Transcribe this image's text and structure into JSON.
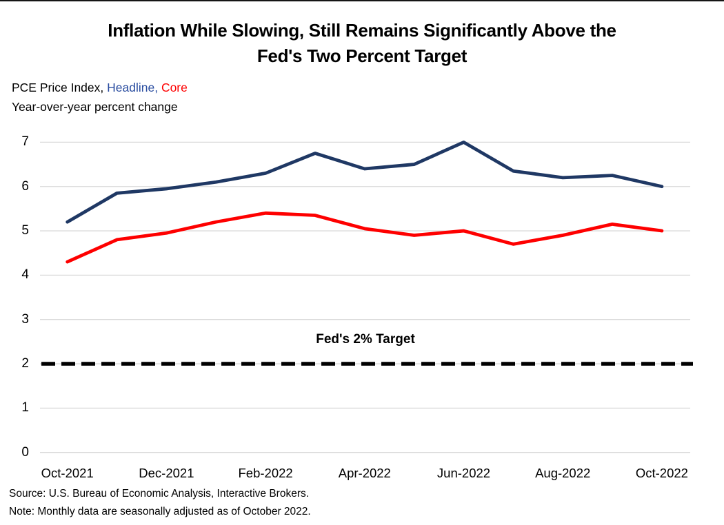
{
  "title_lines": [
    "Inflation While Slowing, Still Remains Significantly Above the",
    "Fed's Two Percent Target"
  ],
  "subtitle": {
    "prefix": "PCE Price Index, ",
    "headline_label": "Headline",
    "separator": ", ",
    "core_label": "Core",
    "line2": "Year-over-year percent change"
  },
  "colors": {
    "headline_line": "#1f3864",
    "core_line": "#fe0000",
    "subtitle_headline": "#2a4da0",
    "subtitle_core": "#fe0000",
    "gridline": "#d9d9d9",
    "target_line": "#000000"
  },
  "source": "Source: U.S. Bureau of Economic Analysis, Interactive Brokers.",
  "note": "Note: Monthly data are seasonally adjusted as of October 2022.",
  "chart_data": {
    "type": "line",
    "title": "Inflation While Slowing, Still Remains Significantly Above the Fed's Two Percent Target",
    "subtitle": "PCE Price Index, Headline, Core — Year-over-year percent change",
    "x": [
      "Oct-2021",
      "Nov-2021",
      "Dec-2021",
      "Jan-2022",
      "Feb-2022",
      "Mar-2022",
      "Apr-2022",
      "May-2022",
      "Jun-2022",
      "Jul-2022",
      "Aug-2022",
      "Sep-2022",
      "Oct-2022"
    ],
    "x_tick_labels": [
      "Oct-2021",
      "Dec-2021",
      "Feb-2022",
      "Apr-2022",
      "Jun-2022",
      "Aug-2022",
      "Oct-2022"
    ],
    "x_tick_month_index": [
      0,
      2,
      4,
      6,
      8,
      10,
      12
    ],
    "y_ticks": [
      "7",
      "6",
      "5",
      "4",
      "3",
      "2",
      "1",
      "0"
    ],
    "ylim": [
      0,
      7
    ],
    "grid": true,
    "legend_position": "inline-subtitle",
    "series": [
      {
        "name": "Headline",
        "color": "#1f3864",
        "values": [
          5.2,
          5.85,
          5.95,
          6.1,
          6.3,
          6.75,
          6.4,
          6.5,
          7.0,
          6.35,
          6.2,
          6.25,
          6.0
        ]
      },
      {
        "name": "Core",
        "color": "#fe0000",
        "values": [
          4.3,
          4.8,
          4.95,
          5.2,
          5.4,
          5.35,
          5.05,
          4.9,
          5.0,
          4.7,
          4.9,
          5.15,
          5.0
        ]
      }
    ],
    "target_line": {
      "value": 2,
      "label": "Fed's 2% Target",
      "style": "dashed",
      "color": "#000000"
    }
  }
}
